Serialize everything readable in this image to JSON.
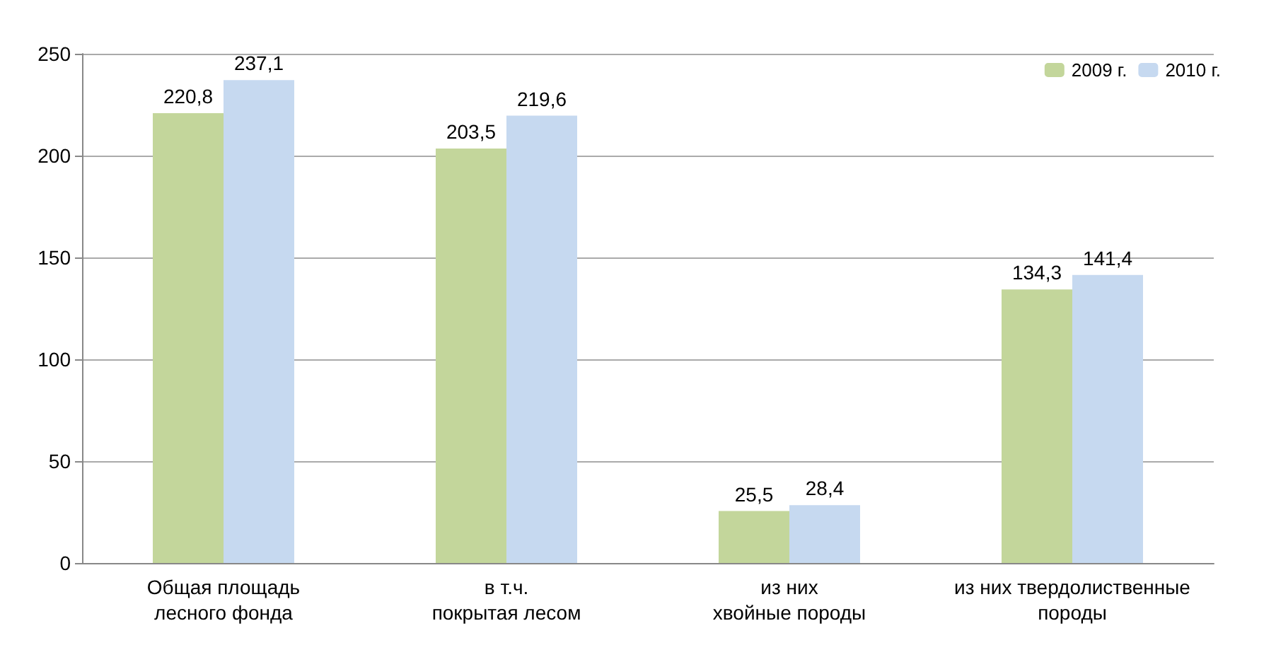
{
  "chart_data": {
    "type": "bar",
    "categories": [
      "Общая площадь\nлесного фонда",
      "в т.ч.\nпокрытая лесом",
      "из них\nхвойные породы",
      "из них твердолиственные\nпороды"
    ],
    "series": [
      {
        "name": "2009 г.",
        "color": "#c3d69b",
        "values": [
          220.8,
          203.5,
          25.5,
          134.3
        ],
        "value_labels": [
          "220,8",
          "203,5",
          "25,5",
          "134,3"
        ]
      },
      {
        "name": "2010 г.",
        "color": "#c6d9f0",
        "values": [
          237.1,
          219.6,
          28.4,
          141.4
        ],
        "value_labels": [
          "237,1",
          "219,6",
          "28,4",
          "141,4"
        ]
      }
    ],
    "ylim": [
      0,
      250
    ],
    "yticks": [
      0,
      50,
      100,
      150,
      200,
      250
    ],
    "grid": "y",
    "legend": "top right"
  }
}
